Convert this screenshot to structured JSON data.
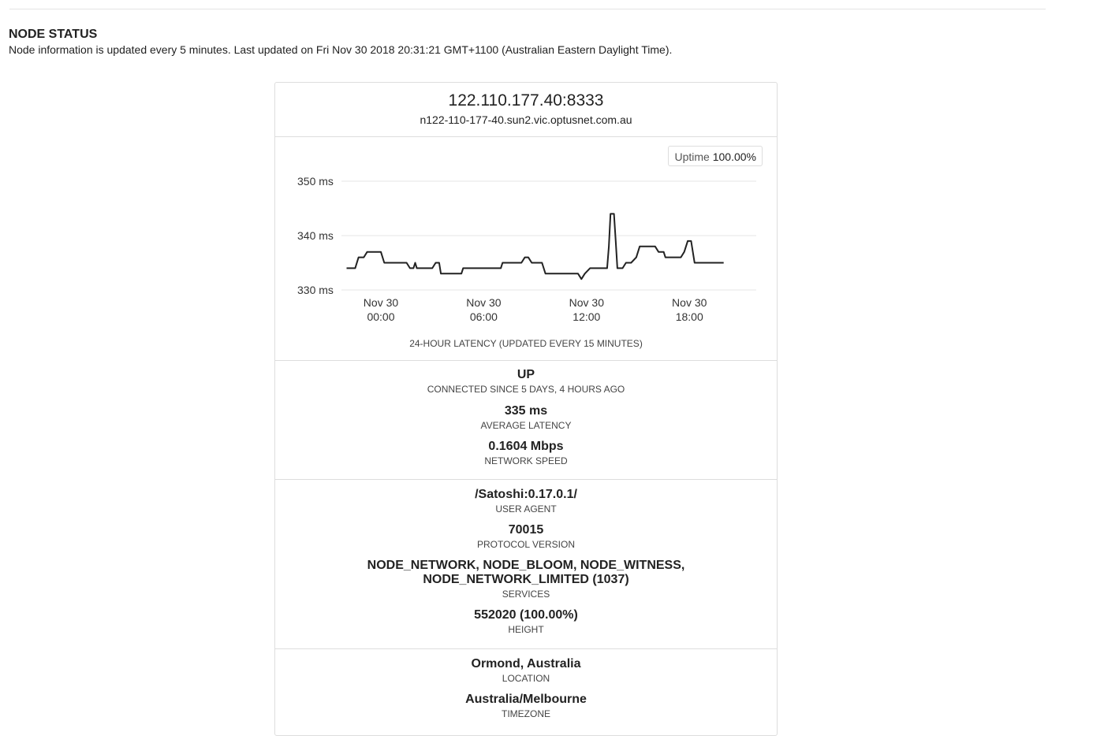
{
  "page": {
    "title": "NODE STATUS",
    "subtitle": "Node information is updated every 5 minutes. Last updated on Fri Nov 30 2018 20:31:21 GMT+1100 (Australian Eastern Daylight Time)."
  },
  "node": {
    "address": "122.110.177.40:8333",
    "hostname": "n122-110-177-40.sun2.vic.optusnet.com.au"
  },
  "uptime": {
    "label": "Uptime",
    "value": "100.00%"
  },
  "chart_data": {
    "type": "line",
    "title": "",
    "caption": "24-HOUR LATENCY (UPDATED EVERY 15 MINUTES)",
    "y_unit": "ms",
    "ylim": [
      330,
      350
    ],
    "y_ticks": [
      {
        "value": 350,
        "label": "350 ms"
      },
      {
        "value": 340,
        "label": "340 ms"
      },
      {
        "value": 330,
        "label": "330 ms"
      }
    ],
    "x_range_hours": [
      -2.3,
      21.9
    ],
    "x_ticks": [
      {
        "hour": 0,
        "line1": "Nov 30",
        "line2": "00:00"
      },
      {
        "hour": 6,
        "line1": "Nov 30",
        "line2": "06:00"
      },
      {
        "hour": 12,
        "line1": "Nov 30",
        "line2": "12:00"
      },
      {
        "hour": 18,
        "line1": "Nov 30",
        "line2": "18:00"
      }
    ],
    "grid": true,
    "series": [
      {
        "color": "#222222",
        "points": [
          [
            -2.0,
            334
          ],
          [
            -1.5,
            334
          ],
          [
            -1.3,
            336
          ],
          [
            -1.0,
            336
          ],
          [
            -0.8,
            337
          ],
          [
            0.0,
            337
          ],
          [
            0.2,
            335
          ],
          [
            1.5,
            335
          ],
          [
            1.7,
            334
          ],
          [
            1.9,
            334
          ],
          [
            2.0,
            335
          ],
          [
            2.1,
            334
          ],
          [
            3.0,
            334
          ],
          [
            3.2,
            335
          ],
          [
            3.4,
            335
          ],
          [
            3.5,
            333
          ],
          [
            4.7,
            333
          ],
          [
            4.8,
            334
          ],
          [
            7.0,
            334
          ],
          [
            7.1,
            335
          ],
          [
            8.2,
            335
          ],
          [
            8.4,
            336
          ],
          [
            8.6,
            336
          ],
          [
            8.8,
            335
          ],
          [
            9.4,
            335
          ],
          [
            9.6,
            333
          ],
          [
            11.5,
            333
          ],
          [
            11.7,
            332
          ],
          [
            11.9,
            333
          ],
          [
            12.2,
            334
          ],
          [
            13.2,
            334
          ],
          [
            13.3,
            338
          ],
          [
            13.4,
            344
          ],
          [
            13.6,
            344
          ],
          [
            13.7,
            339
          ],
          [
            13.8,
            334
          ],
          [
            14.1,
            334
          ],
          [
            14.3,
            335
          ],
          [
            14.6,
            335
          ],
          [
            14.9,
            336
          ],
          [
            15.1,
            338
          ],
          [
            16.0,
            338
          ],
          [
            16.2,
            337
          ],
          [
            16.5,
            337
          ],
          [
            16.6,
            336
          ],
          [
            17.5,
            336
          ],
          [
            17.7,
            337
          ],
          [
            17.9,
            339
          ],
          [
            18.1,
            339
          ],
          [
            18.3,
            335
          ],
          [
            20.0,
            335
          ]
        ]
      }
    ]
  },
  "status": {
    "state": "UP",
    "state_label": "CONNECTED SINCE 5 DAYS, 4 HOURS AGO",
    "latency": "335 ms",
    "latency_label": "AVERAGE LATENCY",
    "speed": "0.1604 Mbps",
    "speed_label": "NETWORK SPEED"
  },
  "software": {
    "user_agent": "/Satoshi:0.17.0.1/",
    "user_agent_label": "USER AGENT",
    "protocol": "70015",
    "protocol_label": "PROTOCOL VERSION",
    "services_line1": "NODE_NETWORK, NODE_BLOOM, NODE_WITNESS,",
    "services_line2": "NODE_NETWORK_LIMITED (1037)",
    "services_label": "SERVICES",
    "height": "552020 (100.00%)",
    "height_label": "HEIGHT"
  },
  "location": {
    "place": "Ormond, Australia",
    "place_label": "LOCATION",
    "timezone": "Australia/Melbourne",
    "timezone_label": "TIMEZONE"
  }
}
